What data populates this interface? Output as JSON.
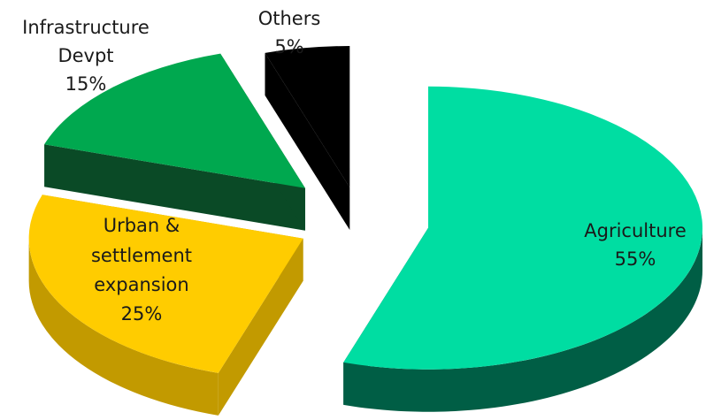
{
  "chart_data": {
    "type": "pie",
    "title": "",
    "style": "3d-exploded",
    "slices": [
      {
        "label": "Agriculture",
        "value": 55,
        "value_label": "55%",
        "color": "#00DDA2",
        "side_color": "#005E45"
      },
      {
        "label": "Urban & settlement expansion",
        "label_lines": [
          "Urban &",
          "settlement",
          "expansion"
        ],
        "value": 25,
        "value_label": "25%",
        "color": "#FFCC00",
        "side_color": "#C29A00"
      },
      {
        "label": "Infrastructure Devpt",
        "label_lines": [
          "Infrastructure",
          "Devpt"
        ],
        "value": 15,
        "value_label": "15%",
        "color": "#00A84F",
        "side_color": "#0A4A26"
      },
      {
        "label": "Others",
        "value": 5,
        "value_label": "5%",
        "color": "#000000",
        "side_color": "#000000"
      }
    ],
    "legend": "none",
    "unit": "%"
  }
}
